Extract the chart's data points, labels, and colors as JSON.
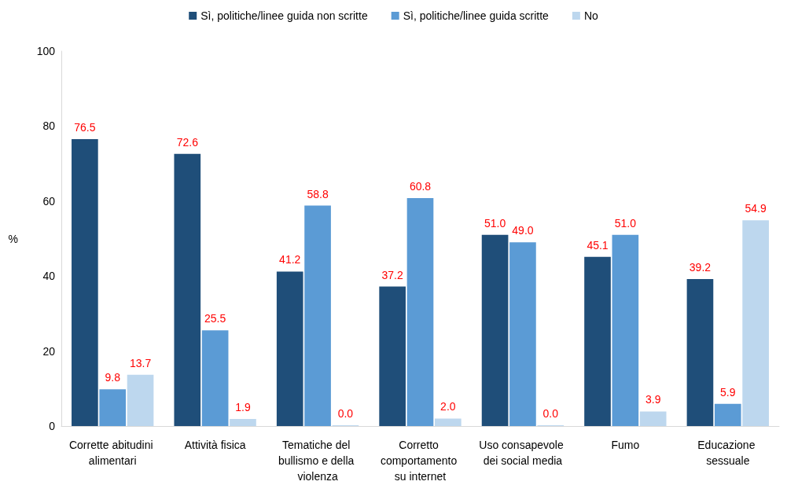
{
  "chart_data": {
    "type": "bar",
    "ylabel": "%",
    "categories": [
      "Corrette abitudini alimentari",
      "Attività fisica",
      "Tematiche del bullismo e della violenza",
      "Corretto comportamento su internet",
      "Uso consapevole dei social media",
      "Fumo",
      "Educazione sessuale"
    ],
    "series": [
      {
        "name": "Sì, politiche/linee guida non scritte",
        "color": "#1f4e79",
        "values": [
          76.5,
          72.6,
          41.2,
          37.2,
          51.0,
          45.1,
          39.2
        ],
        "value_labels": [
          "76.5",
          "72.6",
          "41.2",
          "37.2",
          "51.0",
          "45.1",
          "39.2"
        ]
      },
      {
        "name": "Sì, politiche/linee guida scritte",
        "color": "#5b9bd5",
        "values": [
          9.8,
          25.5,
          58.8,
          60.8,
          49.0,
          51.0,
          5.9
        ],
        "value_labels": [
          "9.8",
          "25.5",
          "58.8",
          "60.8",
          "49.0",
          "51.0",
          "5.9"
        ]
      },
      {
        "name": "No",
        "color": "#bdd7ee",
        "values": [
          13.7,
          1.9,
          0.0,
          2.0,
          0.0,
          3.9,
          54.9
        ],
        "value_labels": [
          "13.7",
          "1.9",
          "0.0",
          "2.0",
          "0.0",
          "3.9",
          "54.9"
        ]
      }
    ],
    "ylim": [
      0,
      100
    ],
    "yticks": [
      0,
      20,
      40,
      60,
      80,
      100
    ],
    "grid": false,
    "legend": "top"
  }
}
